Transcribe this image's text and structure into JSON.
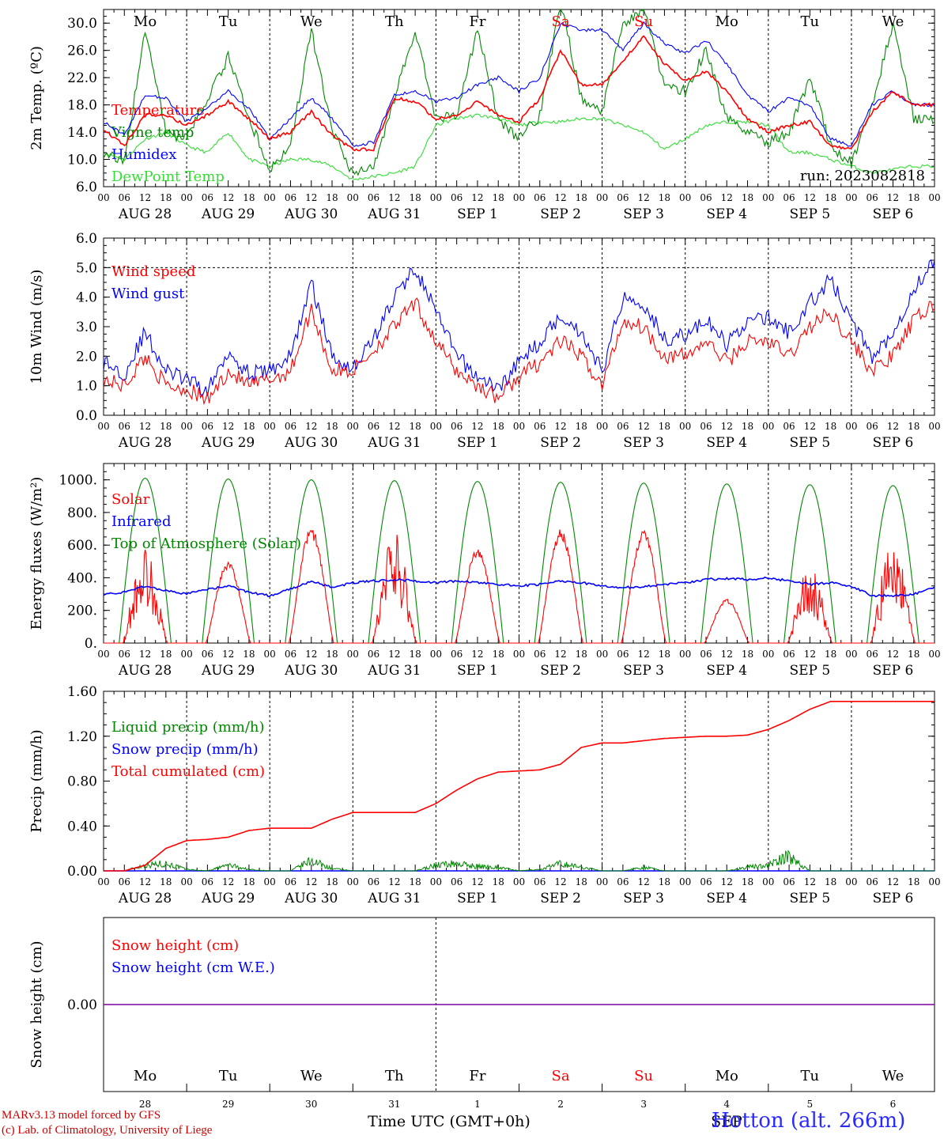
{
  "run": "run: 2023082818",
  "hour_ticks": [
    "00",
    "06",
    "12",
    "18"
  ],
  "date_labels": [
    "AUG 28",
    "AUG 29",
    "AUG 30",
    "AUG 31",
    "SEP  1",
    "SEP  2",
    "SEP  3",
    "SEP  4",
    "SEP  5",
    "SEP  6"
  ],
  "days": [
    {
      "name": "Mo",
      "num": "28",
      "weekend": false
    },
    {
      "name": "Tu",
      "num": "29",
      "weekend": false
    },
    {
      "name": "We",
      "num": "30",
      "weekend": false
    },
    {
      "name": "Th",
      "num": "31",
      "weekend": false
    },
    {
      "name": "Fr",
      "num": "1",
      "weekend": false
    },
    {
      "name": "Sa",
      "num": "2",
      "weekend": true
    },
    {
      "name": "Su",
      "num": "3",
      "weekend": true
    },
    {
      "name": "Mo",
      "num": "4",
      "weekend": false
    },
    {
      "name": "Tu",
      "num": "5",
      "weekend": false
    },
    {
      "name": "We",
      "num": "6",
      "weekend": false
    }
  ],
  "colors": {
    "red": "#ff0000",
    "green": "#008800",
    "blue": "#0000ff",
    "lime": "#33dd33",
    "purple": "#8000a0"
  },
  "footer": {
    "model": "MARv3.13 model forced by GFS",
    "copyright": "(c) Lab. of Climatology, University of Liege",
    "xlabel": "Time UTC (GMT+0h)",
    "month": "SEP",
    "site": "Hotton (alt. 266m)"
  },
  "chart_data": [
    {
      "type": "line",
      "ylabel": "2m Temp. (ºC)",
      "ylim": [
        6,
        32
      ],
      "yticks": [
        6,
        10,
        14,
        18,
        22,
        26,
        30
      ],
      "ticklabels": [
        "6.0",
        "10.0",
        "14.0",
        "18.0",
        "22.0",
        "26.0",
        "30.0"
      ],
      "x_hours": [
        0,
        6,
        12,
        18,
        24,
        30,
        36,
        42,
        48,
        54,
        60,
        66,
        72,
        78,
        84,
        90,
        96,
        102,
        108,
        114,
        120,
        126,
        132,
        138,
        144,
        150,
        156,
        162,
        168,
        174,
        180,
        186,
        192,
        198,
        204,
        210,
        216,
        222,
        228,
        234,
        240
      ],
      "series": [
        {
          "name": "Temperature",
          "color": "red",
          "values": [
            14.5,
            12,
            16.5,
            16.5,
            15,
            16.5,
            18.5,
            16,
            13,
            14,
            17,
            13.5,
            11.5,
            11.5,
            19,
            18.5,
            16,
            16.5,
            18.5,
            16.5,
            15.5,
            19,
            26,
            21,
            21,
            24.5,
            28,
            24,
            21.5,
            23,
            20,
            16,
            14,
            15,
            15.5,
            12,
            11.5,
            17,
            20,
            18,
            18
          ]
        },
        {
          "name": "Vigne temp",
          "color": "green",
          "values": [
            11,
            9.5,
            29,
            14,
            13,
            19,
            25,
            16,
            8.5,
            12,
            29,
            14,
            8,
            9,
            19,
            29,
            16,
            16.5,
            29,
            16,
            13,
            16.5,
            33,
            19,
            17,
            30,
            32,
            21,
            20,
            26,
            16,
            14,
            12.5,
            14,
            22,
            12,
            9.5,
            18,
            30,
            16,
            16
          ]
        },
        {
          "name": "Humidex",
          "color": "blue",
          "values": [
            15.5,
            13.5,
            19.5,
            19,
            15.5,
            17.5,
            20,
            17.5,
            13,
            16,
            19,
            16,
            12,
            12.5,
            19.5,
            20,
            18.5,
            19,
            21,
            22,
            20,
            22,
            30,
            29,
            29,
            26,
            30,
            27,
            25.5,
            27.5,
            24,
            19.5,
            17,
            19,
            18,
            13,
            12,
            18,
            20,
            18,
            18
          ]
        },
        {
          "name": "DewPoint Temp",
          "color": "lime",
          "values": [
            11,
            10,
            13,
            14,
            12,
            11,
            14,
            10,
            9,
            10,
            10,
            9,
            7,
            7.5,
            8,
            9,
            15,
            16,
            16.5,
            16,
            15,
            15.5,
            15.5,
            16,
            16,
            15,
            14,
            11.5,
            13,
            15,
            15.5,
            15.5,
            15,
            11,
            11,
            10,
            9,
            8,
            8.5,
            9,
            9
          ]
        }
      ],
      "legend": [
        "Temperature",
        "Vigne temp",
        "Humidex",
        "DewPoint Temp"
      ]
    },
    {
      "type": "line",
      "ylabel": "10m Wind (m/s)",
      "ylim": [
        0,
        6
      ],
      "yticks": [
        0,
        1,
        2,
        3,
        4,
        5,
        6
      ],
      "ticklabels": [
        "0.0",
        "1.0",
        "2.0",
        "3.0",
        "4.0",
        "5.0",
        "6.0"
      ],
      "x_hours": [
        0,
        6,
        12,
        18,
        24,
        30,
        36,
        42,
        48,
        54,
        60,
        66,
        72,
        78,
        84,
        90,
        96,
        102,
        108,
        114,
        120,
        126,
        132,
        138,
        144,
        150,
        156,
        162,
        168,
        174,
        180,
        186,
        192,
        198,
        204,
        210,
        216,
        222,
        228,
        234,
        240
      ],
      "series": [
        {
          "name": "Wind speed",
          "color": "red",
          "values": [
            1.2,
            1,
            2,
            1,
            0.9,
            0.5,
            1.5,
            1,
            1.2,
            1.5,
            3.6,
            1.5,
            1.5,
            2.2,
            3,
            3.8,
            2.5,
            1.5,
            1,
            0.6,
            1.3,
            1.8,
            2.5,
            2,
            1,
            3.2,
            3,
            2,
            2,
            2.5,
            1.8,
            2.5,
            2.5,
            2,
            3,
            3.5,
            2.5,
            1.5,
            2,
            3.2,
            3.8
          ]
        },
        {
          "name": "Wind gust",
          "color": "blue",
          "values": [
            1.8,
            1.4,
            2.8,
            1.5,
            1.2,
            0.8,
            2.2,
            1.4,
            1.5,
            2,
            4.5,
            2,
            1.6,
            2.6,
            4,
            5,
            3.5,
            2,
            1.3,
            0.9,
            1.8,
            2.5,
            3.4,
            2.8,
            1.5,
            4,
            3.8,
            2.6,
            2.7,
            3.2,
            2.4,
            3.2,
            3.3,
            2.8,
            3.8,
            4.6,
            3.2,
            2,
            2.8,
            4.3,
            5.2
          ]
        }
      ],
      "legend": [
        "Wind speed",
        "Wind gust"
      ]
    },
    {
      "type": "line",
      "ylabel": "Energy fluxes (W/m²)",
      "ylim": [
        0,
        1100
      ],
      "yticks": [
        0,
        200,
        400,
        600,
        800,
        1000
      ],
      "ticklabels": [
        "0.",
        "200.",
        "400.",
        "600.",
        "800.",
        "1000."
      ],
      "series": [
        {
          "name": "Solar",
          "color": "red",
          "peaks": [
            600,
            500,
            710,
            690,
            580,
            700,
            700,
            270,
            480,
            650
          ]
        },
        {
          "name": "Infrared",
          "color": "blue",
          "values": [
            300,
            310,
            350,
            320,
            300,
            330,
            350,
            310,
            290,
            330,
            380,
            340,
            370,
            380,
            390,
            380,
            370,
            380,
            370,
            360,
            350,
            360,
            380,
            370,
            350,
            340,
            345,
            360,
            370,
            390,
            395,
            390,
            400,
            380,
            360,
            370,
            350,
            290,
            290,
            300,
            340
          ]
        },
        {
          "name": "Top of Atmosphere (Solar)",
          "color": "green",
          "peaks": [
            1010,
            1005,
            1000,
            995,
            990,
            985,
            980,
            975,
            970,
            965
          ]
        }
      ],
      "legend": [
        "Solar",
        "Infrared",
        "Top of Atmosphere (Solar)"
      ]
    },
    {
      "type": "line",
      "ylabel": "Precip (mm/h)",
      "ylim": [
        0,
        1.6
      ],
      "yticks": [
        0,
        0.4,
        0.8,
        1.2,
        1.6
      ],
      "ticklabels": [
        "0.00",
        "0.40",
        "0.80",
        "1.20",
        "1.60"
      ],
      "x_hours": [
        0,
        6,
        12,
        18,
        24,
        30,
        36,
        42,
        48,
        54,
        60,
        66,
        72,
        78,
        84,
        90,
        96,
        102,
        108,
        114,
        120,
        126,
        132,
        138,
        144,
        150,
        156,
        162,
        168,
        174,
        180,
        186,
        192,
        198,
        204,
        210,
        216,
        222,
        228,
        234,
        240
      ],
      "series": [
        {
          "name": "Liquid precip (mm/h)",
          "color": "green",
          "values": [
            0,
            0,
            0.08,
            0.1,
            0.02,
            0,
            0.08,
            0.02,
            0,
            0,
            0.14,
            0.03,
            0,
            0,
            0,
            0,
            0.08,
            0.1,
            0.06,
            0.05,
            0,
            0.02,
            0.1,
            0.05,
            0,
            0,
            0.05,
            0,
            0,
            0,
            0,
            0.05,
            0.08,
            0.2,
            0,
            0,
            0,
            0,
            0,
            0,
            0
          ]
        },
        {
          "name": "Snow precip (mm/h)",
          "color": "blue",
          "values": [
            0,
            0,
            0,
            0,
            0,
            0,
            0,
            0,
            0,
            0,
            0,
            0,
            0,
            0,
            0,
            0,
            0,
            0,
            0,
            0,
            0,
            0,
            0,
            0,
            0,
            0,
            0,
            0,
            0,
            0,
            0,
            0,
            0,
            0,
            0,
            0,
            0,
            0,
            0,
            0,
            0
          ]
        },
        {
          "name": "Total cumulated (cm)",
          "color": "red",
          "values": [
            0,
            0,
            0.05,
            0.2,
            0.27,
            0.28,
            0.3,
            0.36,
            0.38,
            0.38,
            0.38,
            0.46,
            0.52,
            0.52,
            0.52,
            0.52,
            0.6,
            0.72,
            0.82,
            0.88,
            0.89,
            0.9,
            0.95,
            1.1,
            1.14,
            1.14,
            1.16,
            1.18,
            1.19,
            1.2,
            1.2,
            1.21,
            1.26,
            1.34,
            1.44,
            1.51,
            1.51,
            1.51,
            1.51,
            1.51,
            1.51
          ]
        }
      ],
      "legend": [
        "Liquid precip (mm/h)",
        "Snow precip (mm/h)",
        "Total cumulated (cm)"
      ]
    },
    {
      "type": "line",
      "ylabel": "Snow height (cm)",
      "ylim": [
        -1,
        1
      ],
      "yticks": [
        0
      ],
      "ticklabels": [
        "0.00"
      ],
      "series": [
        {
          "name": "Snow height (cm)",
          "color": "red",
          "values": [
            0,
            0
          ]
        },
        {
          "name": "Snow height (cm W.E.)",
          "color": "blue",
          "values": [
            0,
            0
          ]
        }
      ],
      "legend": [
        "Snow height (cm)",
        "Snow height (cm W.E.)"
      ]
    }
  ]
}
